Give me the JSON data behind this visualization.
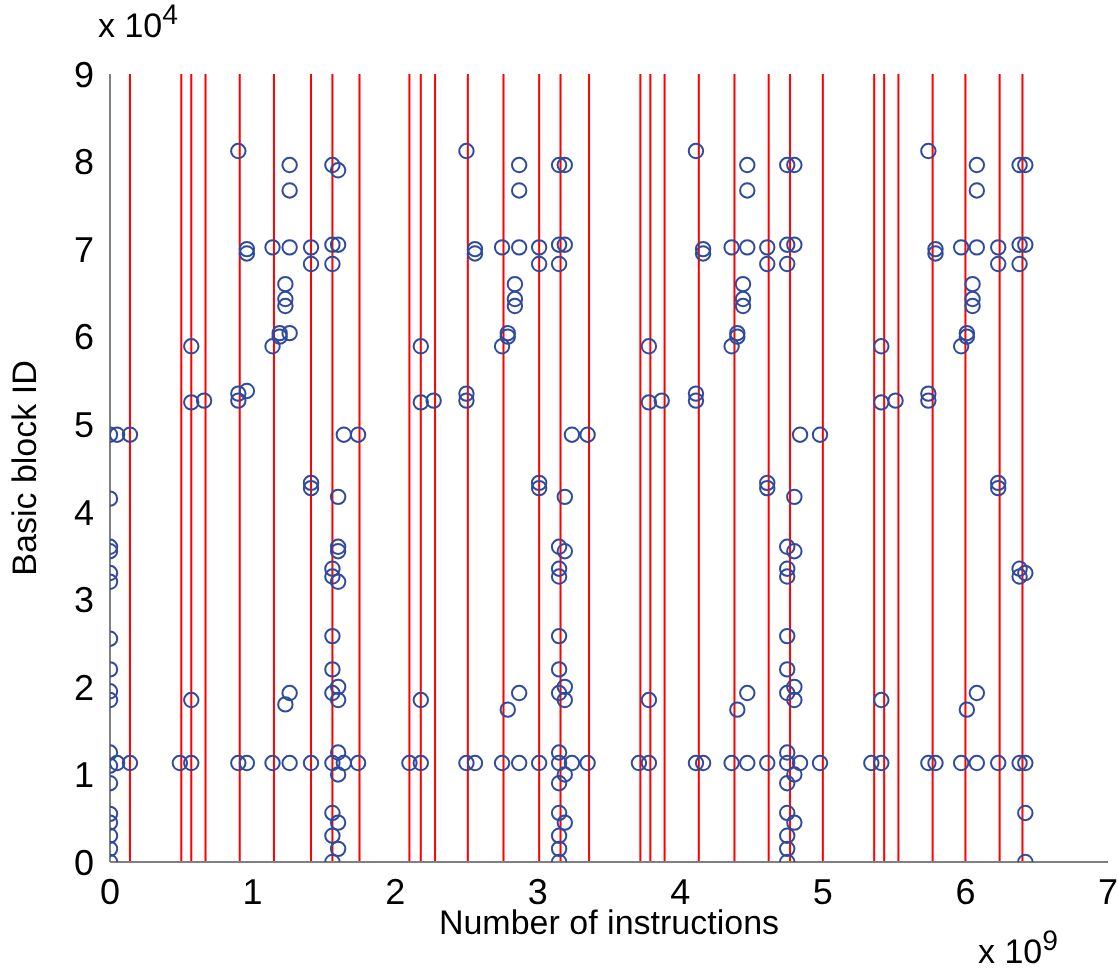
{
  "chart_data": {
    "type": "scatter",
    "xlabel": "Number of instructions",
    "ylabel": "Basic block ID",
    "xlim": [
      0,
      7
    ],
    "xticks": [
      0,
      1,
      2,
      3,
      4,
      5,
      6,
      7
    ],
    "ylim": [
      0,
      9
    ],
    "yticks": [
      0,
      1,
      2,
      3,
      4,
      5,
      6,
      7,
      8,
      9
    ],
    "marker": "circle",
    "annotations": [
      "x 10$^{4}$",
      "x 10$^{9}$"
    ],
    "ref_lines": [
      {
        "axis": "x",
        "value": 0.14,
        "color": "#ff0000"
      },
      {
        "axis": "x",
        "value": 0.5,
        "color": "#ff0000"
      },
      {
        "axis": "x",
        "value": 0.57,
        "color": "#ff0000"
      },
      {
        "axis": "x",
        "value": 0.67,
        "color": "#ff0000"
      },
      {
        "axis": "x",
        "value": 0.91,
        "color": "#ff0000"
      },
      {
        "axis": "x",
        "value": 1.15,
        "color": "#ff0000"
      },
      {
        "axis": "x",
        "value": 1.41,
        "color": "#ff0000"
      },
      {
        "axis": "x",
        "value": 1.56,
        "color": "#ff0000"
      },
      {
        "axis": "x",
        "value": 1.75,
        "color": "#ff0000"
      },
      {
        "axis": "x",
        "value": 2.1,
        "color": "#ff0000"
      },
      {
        "axis": "x",
        "value": 2.18,
        "color": "#ff0000"
      },
      {
        "axis": "x",
        "value": 2.28,
        "color": "#ff0000"
      },
      {
        "axis": "x",
        "value": 2.51,
        "color": "#ff0000"
      },
      {
        "axis": "x",
        "value": 2.76,
        "color": "#ff0000"
      },
      {
        "axis": "x",
        "value": 3.01,
        "color": "#ff0000"
      },
      {
        "axis": "x",
        "value": 3.16,
        "color": "#ff0000"
      },
      {
        "axis": "x",
        "value": 3.36,
        "color": "#ff0000"
      },
      {
        "axis": "x",
        "value": 3.72,
        "color": "#ff0000"
      },
      {
        "axis": "x",
        "value": 3.79,
        "color": "#ff0000"
      },
      {
        "axis": "x",
        "value": 3.89,
        "color": "#ff0000"
      },
      {
        "axis": "x",
        "value": 4.13,
        "color": "#ff0000"
      },
      {
        "axis": "x",
        "value": 4.38,
        "color": "#ff0000"
      },
      {
        "axis": "x",
        "value": 4.62,
        "color": "#ff0000"
      },
      {
        "axis": "x",
        "value": 4.77,
        "color": "#ff0000"
      },
      {
        "axis": "x",
        "value": 5.0,
        "color": "#ff0000"
      },
      {
        "axis": "x",
        "value": 5.36,
        "color": "#ff0000"
      },
      {
        "axis": "x",
        "value": 5.43,
        "color": "#ff0000"
      },
      {
        "axis": "x",
        "value": 5.53,
        "color": "#ff0000"
      },
      {
        "axis": "x",
        "value": 5.77,
        "color": "#ff0000"
      },
      {
        "axis": "x",
        "value": 6.0,
        "color": "#ff0000"
      },
      {
        "axis": "x",
        "value": 6.24,
        "color": "#ff0000"
      },
      {
        "axis": "x",
        "value": 6.4,
        "color": "#ff0000"
      }
    ],
    "series": [
      {
        "color": "#2e4a9e",
        "x": [
          0,
          0,
          0,
          0,
          0,
          0,
          0,
          0,
          0,
          0,
          0,
          0,
          0,
          0,
          0,
          0,
          0,
          0,
          0.05,
          0.05,
          0.14,
          0.14,
          0.49,
          0.57,
          0.57,
          0.57,
          0.57,
          0.66,
          0.9,
          0.9,
          0.9,
          0.9,
          0.96,
          0.96,
          0.96,
          0.96,
          1.14,
          1.14,
          1.14,
          1.19,
          1.19,
          1.23,
          1.23,
          1.23,
          1.23,
          1.26,
          1.26,
          1.26,
          1.26,
          1.26,
          1.26,
          1.41,
          1.41,
          1.41,
          1.41,
          1.41,
          1.56,
          1.56,
          1.56,
          1.56,
          1.56,
          1.56,
          1.56,
          1.56,
          1.56,
          1.56,
          1.56,
          1.56,
          1.6,
          1.6,
          1.6,
          1.6,
          1.6,
          1.6,
          1.6,
          1.6,
          1.6,
          1.6,
          1.6,
          1.6,
          1.64,
          1.64,
          1.74,
          1.74
        ],
        "values": [
          0,
          0.15,
          0.3,
          0.45,
          0.55,
          0.9,
          1.1,
          1.25,
          1.85,
          1.95,
          2.2,
          2.55,
          3.2,
          3.3,
          3.55,
          3.6,
          4.15,
          4.88,
          1.13,
          4.88,
          1.13,
          4.88,
          1.13,
          1.13,
          1.85,
          5.25,
          5.89,
          5.27,
          1.13,
          5.27,
          5.35,
          8.12,
          1.13,
          5.38,
          6.95,
          7.0,
          1.13,
          5.89,
          7.02,
          6.0,
          6.04,
          1.8,
          6.35,
          6.43,
          6.6,
          1.13,
          1.93,
          6.04,
          7.02,
          7.67,
          7.96,
          1.13,
          4.27,
          4.33,
          6.83,
          7.02,
          0,
          0.3,
          0.56,
          1.13,
          1.93,
          2.2,
          2.58,
          3.26,
          3.35,
          6.83,
          7.05,
          7.96,
          0.15,
          0.45,
          1.0,
          1.25,
          1.85,
          2.0,
          3.2,
          3.55,
          3.6,
          4.17,
          7.05,
          7.9,
          1.13,
          4.88,
          1.13,
          4.88
        ]
      },
      {
        "color": "#2e4a9e",
        "x": [
          2.1,
          2.18,
          2.18,
          2.18,
          2.18,
          2.27,
          2.5,
          2.5,
          2.5,
          2.5,
          2.56,
          2.56,
          2.56,
          2.75,
          2.75,
          2.75,
          2.79,
          2.79,
          2.79,
          2.84,
          2.84,
          2.84,
          2.87,
          2.87,
          2.87,
          2.87,
          2.87,
          3.01,
          3.01,
          3.01,
          3.01,
          3.01,
          3.15,
          3.15,
          3.15,
          3.15,
          3.15,
          3.15,
          3.15,
          3.15,
          3.15,
          3.15,
          3.15,
          3.15,
          3.15,
          3.15,
          3.15,
          3.15,
          3.19,
          3.19,
          3.19,
          3.19,
          3.19,
          3.19,
          3.19,
          3.19,
          3.24,
          3.24,
          3.35,
          3.35
        ],
        "values": [
          1.13,
          1.13,
          1.85,
          5.25,
          5.89,
          5.27,
          1.13,
          5.27,
          5.35,
          8.12,
          1.13,
          6.95,
          7.0,
          1.13,
          5.89,
          7.02,
          1.74,
          6.0,
          6.04,
          6.35,
          6.43,
          6.6,
          1.13,
          1.93,
          7.02,
          7.67,
          7.96,
          1.13,
          4.27,
          4.33,
          6.83,
          7.02,
          0,
          0.15,
          0.3,
          0.56,
          0.9,
          1.13,
          1.25,
          1.93,
          2.2,
          2.58,
          3.26,
          3.35,
          3.6,
          6.83,
          7.05,
          7.96,
          0.45,
          1.0,
          1.85,
          2.0,
          3.55,
          4.17,
          7.05,
          7.96,
          1.13,
          4.88,
          1.13,
          4.88
        ]
      },
      {
        "color": "#2e4a9e",
        "x": [
          3.71,
          3.78,
          3.78,
          3.78,
          3.78,
          3.87,
          4.11,
          4.11,
          4.11,
          4.11,
          4.16,
          4.16,
          4.16,
          4.36,
          4.36,
          4.36,
          4.4,
          4.4,
          4.4,
          4.44,
          4.44,
          4.44,
          4.47,
          4.47,
          4.47,
          4.47,
          4.47,
          4.61,
          4.61,
          4.61,
          4.61,
          4.61,
          4.75,
          4.75,
          4.75,
          4.75,
          4.75,
          4.75,
          4.75,
          4.75,
          4.75,
          4.75,
          4.75,
          4.75,
          4.75,
          4.75,
          4.75,
          4.75,
          4.8,
          4.8,
          4.8,
          4.8,
          4.8,
          4.8,
          4.8,
          4.8,
          4.84,
          4.84,
          4.98,
          4.98
        ],
        "values": [
          1.13,
          1.13,
          1.85,
          5.25,
          5.89,
          5.27,
          1.13,
          5.27,
          5.35,
          8.12,
          1.13,
          6.95,
          7.0,
          1.13,
          5.89,
          7.02,
          1.74,
          6.0,
          6.04,
          6.35,
          6.43,
          6.6,
          1.13,
          1.93,
          7.02,
          7.67,
          7.96,
          1.13,
          4.27,
          4.33,
          6.83,
          7.02,
          0,
          0.15,
          0.3,
          0.56,
          0.9,
          1.13,
          1.25,
          1.93,
          2.2,
          2.58,
          3.26,
          3.35,
          3.6,
          6.83,
          7.05,
          7.96,
          0.45,
          1.0,
          1.85,
          2.0,
          3.55,
          4.17,
          7.05,
          7.96,
          1.13,
          4.88,
          1.13,
          4.88
        ]
      },
      {
        "color": "#2e4a9e",
        "x": [
          5.34,
          5.41,
          5.41,
          5.41,
          5.41,
          5.51,
          5.74,
          5.74,
          5.74,
          5.74,
          5.79,
          5.79,
          5.79,
          5.97,
          5.97,
          5.97,
          6.01,
          6.01,
          6.01,
          6.05,
          6.05,
          6.05,
          6.08,
          6.08,
          6.08,
          6.08,
          6.08,
          6.23,
          6.23,
          6.23,
          6.23,
          6.23,
          6.38,
          6.38,
          6.38,
          6.38,
          6.38,
          6.38,
          6.42,
          6.42,
          6.42,
          6.42,
          6.42,
          6.42
        ],
        "values": [
          1.13,
          1.13,
          1.85,
          5.25,
          5.89,
          5.27,
          1.13,
          5.27,
          5.35,
          8.12,
          1.13,
          6.95,
          7.0,
          1.13,
          5.89,
          7.02,
          1.74,
          6.0,
          6.04,
          6.35,
          6.43,
          6.6,
          1.13,
          1.93,
          7.02,
          7.67,
          7.96,
          1.13,
          4.27,
          4.33,
          6.83,
          7.02,
          1.13,
          3.26,
          3.35,
          6.83,
          7.05,
          7.96,
          0,
          0.56,
          1.13,
          3.3,
          7.05,
          7.96
        ]
      }
    ]
  }
}
